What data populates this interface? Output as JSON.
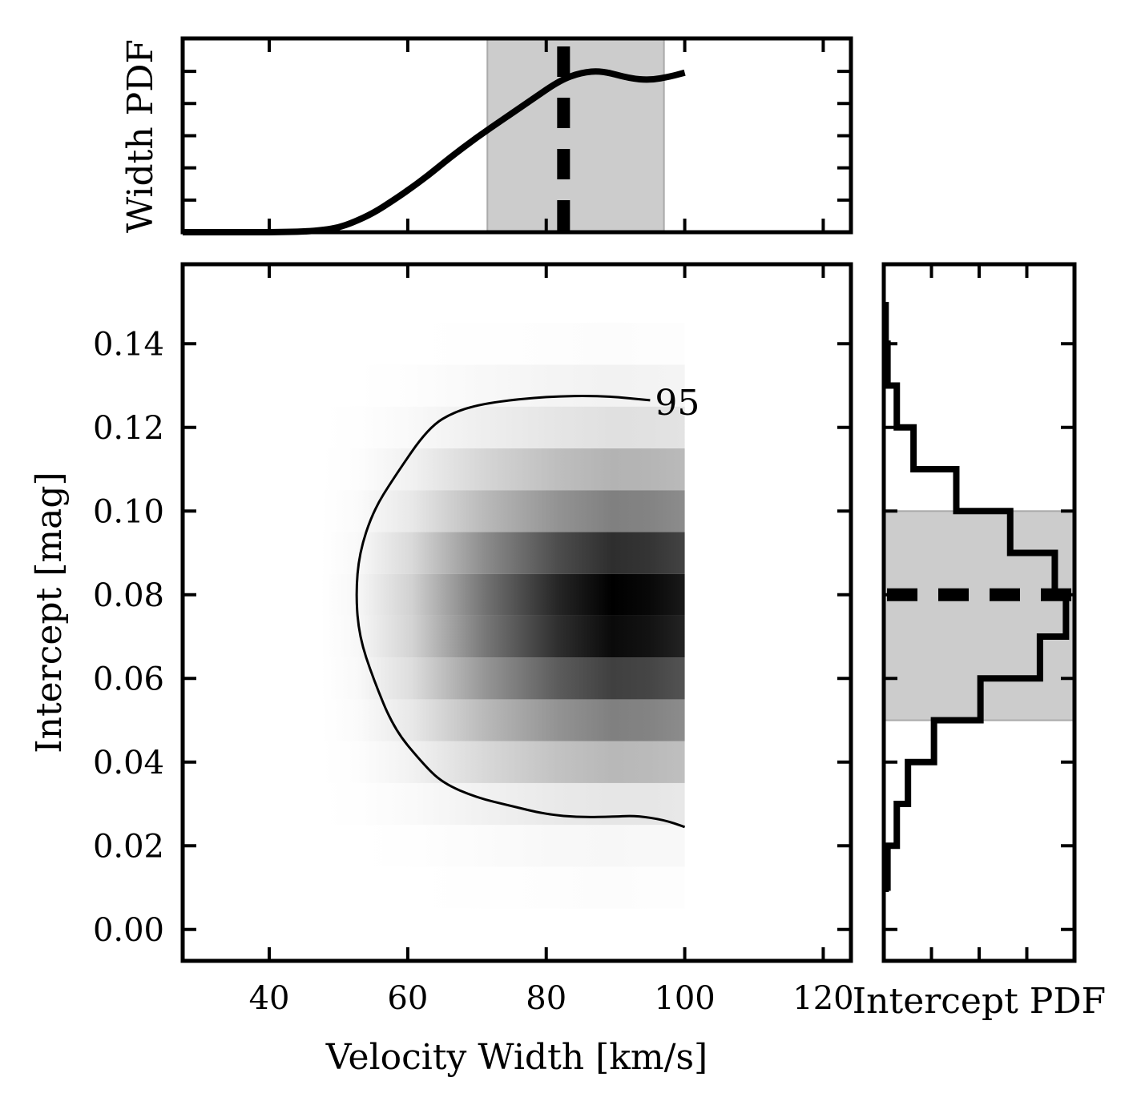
{
  "chart_data": [
    {
      "panel": "main",
      "type": "heatmap",
      "xlabel": "Velocity Width [km/s]",
      "ylabel": "Intercept [mag]",
      "xlim": [
        27.5,
        124
      ],
      "ylim": [
        -0.0075,
        0.159
      ],
      "xticks": [
        40,
        60,
        80,
        100,
        120
      ],
      "xtick_labels": [
        "40",
        "60",
        "80",
        "100",
        "120"
      ],
      "yticks": [
        0.0,
        0.02,
        0.04,
        0.06,
        0.08,
        0.1,
        0.12,
        0.14
      ],
      "ytick_labels": [
        "0.00",
        "0.02",
        "0.04",
        "0.06",
        "0.08",
        "0.10",
        "0.12",
        "0.14"
      ],
      "grid": false,
      "colormap": "gray_r",
      "x_range": [
        47.5,
        100
      ],
      "y_rows": [
        0.0,
        0.01,
        0.02,
        0.03,
        0.04,
        0.05,
        0.06,
        0.07,
        0.08,
        0.09,
        0.1,
        0.11,
        0.12,
        0.13,
        0.14
      ],
      "row_peak_density": [
        0.0,
        0.01,
        0.03,
        0.1,
        0.28,
        0.5,
        0.75,
        0.96,
        1.0,
        0.82,
        0.5,
        0.3,
        0.12,
        0.05,
        0.01
      ],
      "contour": {
        "label": "95",
        "points": [
          [
            100,
            0.0245
          ],
          [
            97,
            0.0262
          ],
          [
            93,
            0.0272
          ],
          [
            90,
            0.027
          ],
          [
            85,
            0.0268
          ],
          [
            80,
            0.0275
          ],
          [
            75,
            0.0295
          ],
          [
            70,
            0.0315
          ],
          [
            65,
            0.035
          ],
          [
            62,
            0.04
          ],
          [
            58,
            0.048
          ],
          [
            55,
            0.06
          ],
          [
            53,
            0.07
          ],
          [
            52.5,
            0.08
          ],
          [
            53,
            0.09
          ],
          [
            55,
            0.1
          ],
          [
            58,
            0.108
          ],
          [
            63,
            0.12
          ],
          [
            67,
            0.124
          ],
          [
            72,
            0.126
          ],
          [
            80,
            0.1274
          ],
          [
            88,
            0.1276
          ],
          [
            95,
            0.1265
          ]
        ]
      }
    },
    {
      "panel": "top",
      "type": "line",
      "ylabel": "Width PDF",
      "xlim": [
        27.5,
        124
      ],
      "x": [
        40,
        45,
        48,
        50,
        52,
        55,
        58,
        60,
        63,
        66,
        70,
        74,
        78,
        82,
        85,
        88,
        92,
        95,
        98,
        100
      ],
      "y": [
        0.0,
        0.003,
        0.012,
        0.025,
        0.05,
        0.1,
        0.17,
        0.22,
        0.3,
        0.39,
        0.5,
        0.6,
        0.7,
        0.8,
        0.84,
        0.85,
        0.81,
        0.8,
        0.82,
        0.84
      ],
      "shaded_interval": [
        71.5,
        97
      ],
      "dashed_line_x": 82.5,
      "colors": {
        "shade": "#cccccc",
        "line": "#000000"
      }
    },
    {
      "panel": "right",
      "type": "bar",
      "xlabel": "Intercept PDF",
      "ylim": [
        -0.0075,
        0.159
      ],
      "bin_edges": [
        -0.01,
        0.0,
        0.01,
        0.02,
        0.03,
        0.04,
        0.05,
        0.06,
        0.07,
        0.08,
        0.09,
        0.1,
        0.11,
        0.12,
        0.13,
        0.14,
        0.15
      ],
      "values": [
        0.0,
        0.01,
        0.02,
        0.07,
        0.13,
        0.27,
        0.52,
        0.84,
        0.98,
        0.92,
        0.68,
        0.39,
        0.16,
        0.07,
        0.02,
        0.01
      ],
      "shaded_interval": [
        0.05,
        0.1
      ],
      "dashed_line_y": 0.08,
      "colors": {
        "shade": "#cccccc",
        "line": "#000000"
      }
    }
  ]
}
